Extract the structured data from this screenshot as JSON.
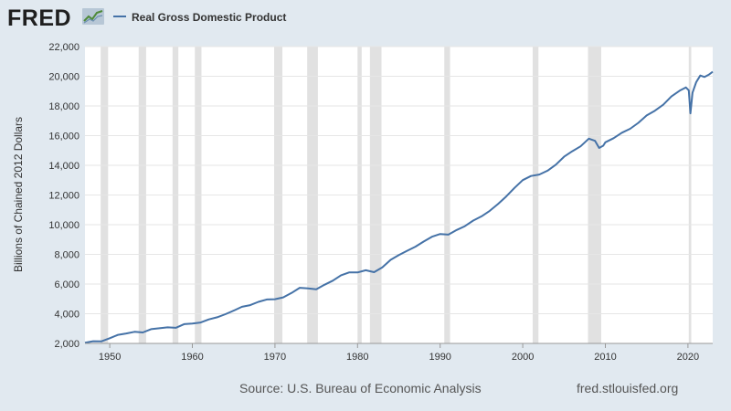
{
  "header": {
    "logo_text": "FRED",
    "logo_mark_icon": "line-chart-icon",
    "legend_label": "Real Gross Domestic Product",
    "series_color": "#4572a7"
  },
  "footer": {
    "source": "Source: U.S. Bureau of Economic Analysis",
    "url": "fred.stlouisfed.org"
  },
  "chart_data": {
    "type": "line",
    "title": "",
    "xlabel": "",
    "ylabel": "Billions of Chained 2012 Dollars",
    "xlim": [
      1947,
      2023
    ],
    "ylim": [
      2000,
      22000
    ],
    "y_ticks": [
      2000,
      4000,
      6000,
      8000,
      10000,
      12000,
      14000,
      16000,
      18000,
      20000,
      22000
    ],
    "y_tick_labels": [
      "2,000",
      "4,000",
      "6,000",
      "8,000",
      "10,000",
      "12,000",
      "14,000",
      "16,000",
      "18,000",
      "20,000",
      "22,000"
    ],
    "x_ticks": [
      1950,
      1960,
      1970,
      1980,
      1990,
      2000,
      2010,
      2020
    ],
    "x_tick_labels": [
      "1950",
      "1960",
      "1970",
      "1980",
      "1990",
      "2000",
      "2010",
      "2020"
    ],
    "grid": "horizontal",
    "legend": "top-left",
    "recessions": [
      [
        1948.9,
        1949.8
      ],
      [
        1953.5,
        1954.4
      ],
      [
        1957.6,
        1958.3
      ],
      [
        1960.3,
        1961.1
      ],
      [
        1969.9,
        1970.9
      ],
      [
        1973.9,
        1975.2
      ],
      [
        1980.0,
        1980.5
      ],
      [
        1981.5,
        1982.9
      ],
      [
        1990.5,
        1991.2
      ],
      [
        2001.2,
        2001.9
      ],
      [
        2007.9,
        2009.5
      ],
      [
        2020.1,
        2020.4
      ]
    ],
    "series": [
      {
        "name": "Real Gross Domestic Product",
        "x": [
          1947,
          1948,
          1949,
          1950,
          1951,
          1952,
          1953,
          1954,
          1955,
          1956,
          1957,
          1958,
          1959,
          1960,
          1961,
          1962,
          1963,
          1964,
          1965,
          1966,
          1967,
          1968,
          1969,
          1970,
          1971,
          1972,
          1973,
          1974,
          1975,
          1976,
          1977,
          1978,
          1979,
          1980,
          1981,
          1982,
          1983,
          1984,
          1985,
          1986,
          1987,
          1988,
          1989,
          1990,
          1991,
          1992,
          1993,
          1994,
          1995,
          1996,
          1997,
          1998,
          1999,
          2000,
          2001,
          2002,
          2003,
          2004,
          2005,
          2006,
          2007,
          2008,
          2008.75,
          2009.25,
          2009.75,
          2010,
          2011,
          2012,
          2013,
          2014,
          2015,
          2016,
          2017,
          2018,
          2019,
          2019.75,
          2020.1,
          2020.3,
          2020.55,
          2021,
          2021.5,
          2022,
          2022.5,
          2023
        ],
        "values": [
          2050,
          2150,
          2140,
          2350,
          2580,
          2670,
          2780,
          2740,
          2960,
          3020,
          3080,
          3050,
          3300,
          3340,
          3410,
          3620,
          3760,
          3970,
          4210,
          4470,
          4580,
          4800,
          4960,
          4980,
          5100,
          5400,
          5750,
          5710,
          5650,
          5950,
          6230,
          6590,
          6790,
          6780,
          6930,
          6800,
          7120,
          7630,
          7950,
          8240,
          8520,
          8860,
          9190,
          9370,
          9330,
          9640,
          9900,
          10280,
          10560,
          10930,
          11390,
          11900,
          12480,
          13000,
          13280,
          13380,
          13640,
          14040,
          14580,
          14950,
          15280,
          15800,
          15650,
          15170,
          15320,
          15550,
          15830,
          16200,
          16460,
          16860,
          17360,
          17680,
          18080,
          18640,
          19030,
          19250,
          19050,
          17500,
          18900,
          19600,
          20050,
          19950,
          20100,
          20300
        ]
      }
    ]
  }
}
